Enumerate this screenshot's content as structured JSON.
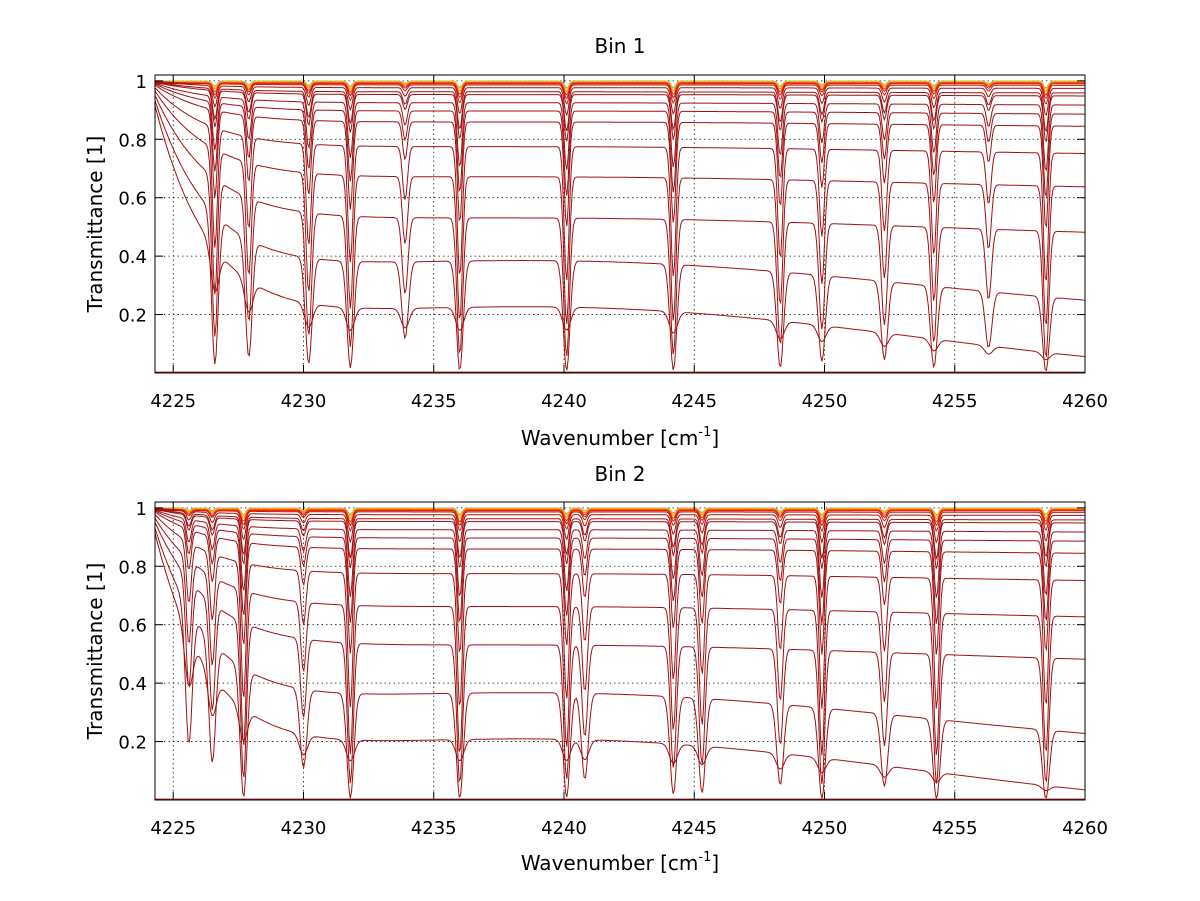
{
  "chart_data": [
    {
      "type": "line",
      "title": "Bin 1",
      "xlabel": "Wavenumber [cm",
      "xlabel_unit_exponent": "-1",
      "xlabel_suffix": "]",
      "ylabel": "Transmittance [1]",
      "xlim": [
        4224.3,
        4260
      ],
      "ylim": [
        0,
        1.02
      ],
      "xticks": [
        4225,
        4230,
        4235,
        4240,
        4245,
        4250,
        4255,
        4260
      ],
      "yticks": [
        0.2,
        0.4,
        0.6,
        0.8,
        1
      ],
      "ytick_labels": [
        "0.2",
        "0.4",
        "0.6",
        "0.8",
        "1"
      ],
      "grid": true,
      "absorption_lines": [
        {
          "x": 4226.6,
          "depth": 0.75
        },
        {
          "x": 4227.9,
          "depth": 0.55
        },
        {
          "x": 4230.2,
          "depth": 0.65
        },
        {
          "x": 4231.8,
          "depth": 0.8
        },
        {
          "x": 4233.9,
          "depth": 0.3
        },
        {
          "x": 4236.0,
          "depth": 0.95
        },
        {
          "x": 4240.1,
          "depth": 1.0
        },
        {
          "x": 4244.2,
          "depth": 0.95
        },
        {
          "x": 4248.3,
          "depth": 0.75
        },
        {
          "x": 4249.9,
          "depth": 0.55
        },
        {
          "x": 4252.3,
          "depth": 0.5
        },
        {
          "x": 4254.2,
          "depth": 0.7
        },
        {
          "x": 4256.3,
          "depth": 0.3
        },
        {
          "x": 4258.5,
          "depth": 1.0
        }
      ],
      "series_baselines": [
        0.0,
        0.12,
        0.3,
        0.5,
        0.65,
        0.76,
        0.85,
        0.89,
        0.92,
        0.95,
        0.96,
        0.975,
        0.985,
        0.99,
        0.993,
        0.996,
        0.998,
        0.999
      ]
    },
    {
      "type": "line",
      "title": "Bin 2",
      "xlabel": "Wavenumber [cm",
      "xlabel_unit_exponent": "-1",
      "xlabel_suffix": "]",
      "ylabel": "Transmittance [1]",
      "xlim": [
        4224.3,
        4260
      ],
      "ylim": [
        0,
        1.02
      ],
      "xticks": [
        4225,
        4230,
        4235,
        4240,
        4245,
        4250,
        4255,
        4260
      ],
      "yticks": [
        0.2,
        0.4,
        0.6,
        0.8,
        1
      ],
      "ytick_labels": [
        "0.2",
        "0.4",
        "0.6",
        "0.8",
        "1"
      ],
      "grid": true,
      "absorption_lines": [
        {
          "x": 4225.6,
          "depth": 0.3
        },
        {
          "x": 4226.5,
          "depth": 0.35
        },
        {
          "x": 4227.7,
          "depth": 0.95
        },
        {
          "x": 4230.0,
          "depth": 0.3
        },
        {
          "x": 4231.8,
          "depth": 1.0
        },
        {
          "x": 4236.0,
          "depth": 1.0
        },
        {
          "x": 4240.1,
          "depth": 0.9
        },
        {
          "x": 4240.8,
          "depth": 0.4
        },
        {
          "x": 4244.2,
          "depth": 0.7
        },
        {
          "x": 4245.3,
          "depth": 0.65
        },
        {
          "x": 4248.3,
          "depth": 0.45
        },
        {
          "x": 4249.9,
          "depth": 1.0
        },
        {
          "x": 4252.3,
          "depth": 0.45
        },
        {
          "x": 4254.3,
          "depth": 1.0
        },
        {
          "x": 4258.5,
          "depth": 0.95
        }
      ],
      "series_baselines": [
        0.0,
        0.1,
        0.28,
        0.5,
        0.64,
        0.76,
        0.85,
        0.89,
        0.92,
        0.95,
        0.96,
        0.975,
        0.985,
        0.99,
        0.993,
        0.996,
        0.998,
        0.999
      ]
    }
  ]
}
